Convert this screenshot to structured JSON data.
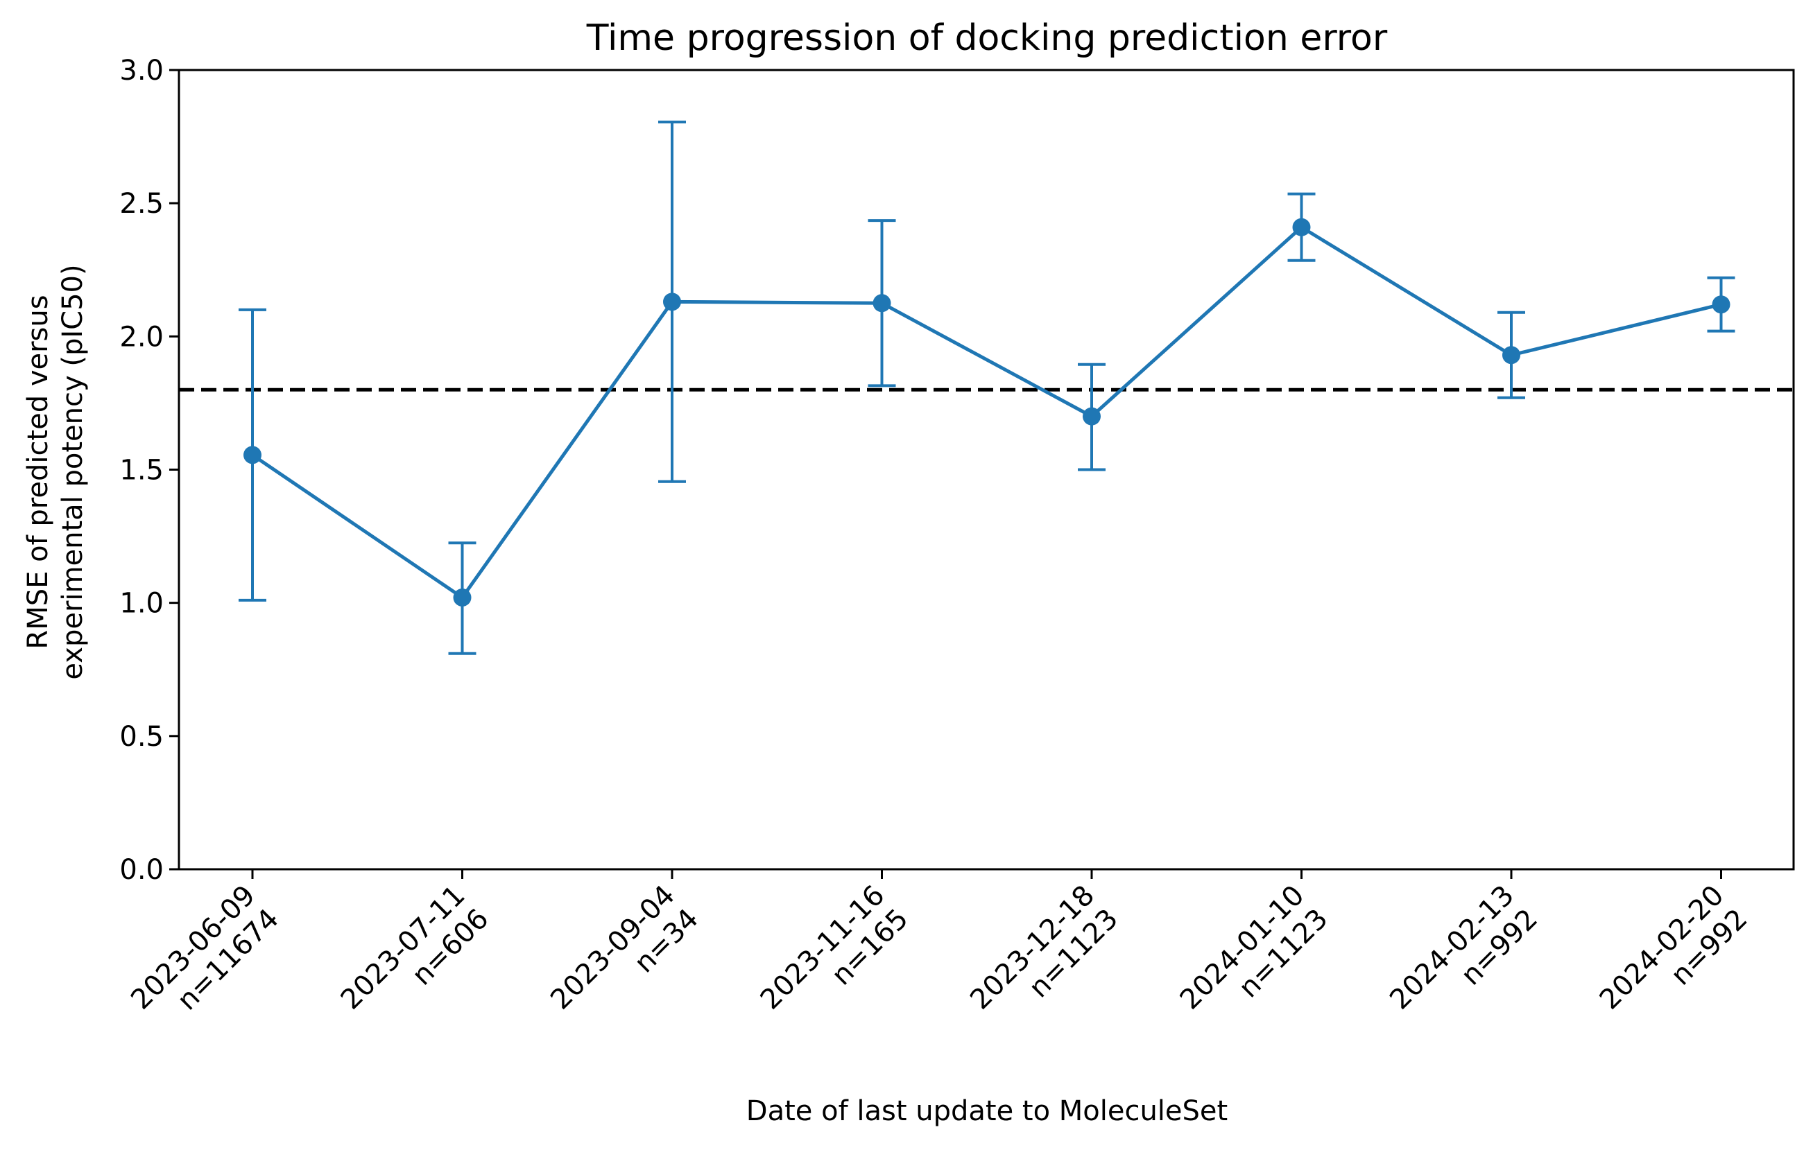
{
  "chart_data": {
    "type": "line",
    "title": "Time progression of docking prediction error",
    "xlabel": "Date of last update to MoleculeSet",
    "ylabel_lines": [
      "RMSE of predicted versus",
      "experimental potency (pIC50)"
    ],
    "categories": [
      {
        "date": "2023-06-09",
        "n": "n=11674"
      },
      {
        "date": "2023-07-11",
        "n": "n=606"
      },
      {
        "date": "2023-09-04",
        "n": "n=34"
      },
      {
        "date": "2023-11-16",
        "n": "n=165"
      },
      {
        "date": "2023-12-18",
        "n": "n=1123"
      },
      {
        "date": "2024-01-10",
        "n": "n=1123"
      },
      {
        "date": "2024-02-13",
        "n": "n=992"
      },
      {
        "date": "2024-02-20",
        "n": "n=992"
      }
    ],
    "series": [
      {
        "values": [
          1.555,
          1.02,
          2.13,
          2.125,
          1.7,
          2.41,
          1.93,
          2.12
        ],
        "err_low": [
          1.01,
          0.81,
          1.455,
          1.815,
          1.5,
          2.285,
          1.77,
          2.02
        ],
        "err_high": [
          2.1,
          1.225,
          2.805,
          2.435,
          1.895,
          2.535,
          2.09,
          2.22
        ],
        "color": "#1f77b4"
      }
    ],
    "reference_line": {
      "y": 1.8,
      "style": "dashed",
      "color": "#000000"
    },
    "ylim": [
      0.0,
      3.0
    ],
    "yticks": [
      "0.0",
      "0.5",
      "1.0",
      "1.5",
      "2.0",
      "2.5",
      "3.0"
    ],
    "grid": false,
    "legend": "none"
  }
}
